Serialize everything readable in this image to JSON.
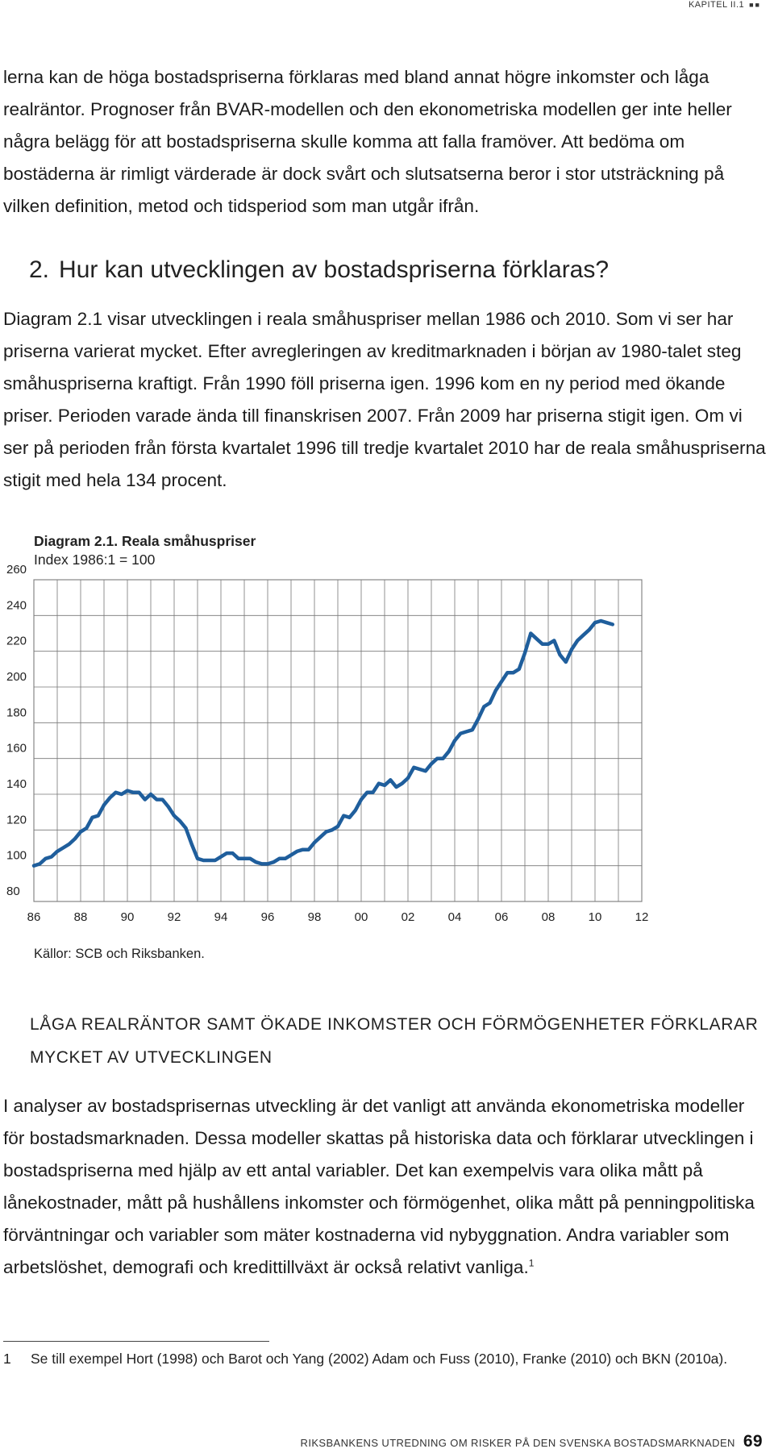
{
  "header": {
    "running_head": "KAPITEL II.1",
    "marker": "■■"
  },
  "paragraphs": {
    "top": "lerna kan de höga bostadspriserna förklaras med bland annat högre inkomster och låga realräntor. Prognoser från BVAR-modellen och den ekonometriska modellen ger inte heller några belägg för att bostadspriserna skulle komma att falla framöver. Att bedöma om bostäderna är rimligt värderade är dock svårt och slutsatserna beror i stor utsträckning på vilken definition, metod och tidsperiod som man utgår ifrån.",
    "p2": "Diagram 2.1 visar utvecklingen i reala småhuspriser mellan 1986 och 2010. Som vi ser har priserna varierat mycket. Efter avregleringen av kreditmarknaden i början av 1980-talet steg småhuspriserna kraftigt. Från 1990 föll priserna igen. 1996 kom en ny period med ökande priser. Perioden varade ända till finanskrisen 2007. Från 2009 har priserna stigit igen. Om vi ser på perioden från första kvartalet 1996 till tredje kvartalet 2010 har de reala småhuspriserna stigit med hela 134 procent.",
    "p3": "I analyser av bostadsprisernas utveckling är det vanligt att använda ekonometriska modeller för bostadsmarknaden. Dessa modeller skattas på historiska data och förklarar utvecklingen i bostadspriserna med hjälp av ett antal variabler. Det kan exempelvis vara olika mått på lånekostnader, mått på hushållens inkomster och förmögenhet, olika mått på penningpolitiska förväntningar och variabler som mäter kostnaderna vid nybyggnation. Andra variabler som arbetslöshet, demografi och kredittillväxt är också relativt vanliga.",
    "p3_sup": "1"
  },
  "section": {
    "number": "2.",
    "title": "Hur kan utvecklingen av bostadspriserna förklaras?"
  },
  "subheading": "LÅGA REALRÄNTOR SAMT ÖKADE INKOMSTER OCH FÖRMÖGENHETER FÖRKLARAR MYCKET AV UTVECKLINGEN",
  "chart_data": {
    "type": "line",
    "title": "Diagram 2.1. Reala småhuspriser",
    "subtitle": "Index 1986:1 = 100",
    "source": "Källor: SCB och Riksbanken.",
    "xlim": [
      1986,
      2012
    ],
    "ylim": [
      80,
      260
    ],
    "xticks": [
      "86",
      "88",
      "90",
      "92",
      "94",
      "96",
      "98",
      "00",
      "02",
      "04",
      "06",
      "08",
      "10",
      "12"
    ],
    "yticks": [
      80,
      100,
      120,
      140,
      160,
      180,
      200,
      220,
      240,
      260
    ],
    "grid": true,
    "line_color": "#1f5e9c",
    "series": [
      {
        "x": [
          1986.0,
          1986.25,
          1986.5,
          1986.75,
          1987.0,
          1987.25,
          1987.5,
          1987.75,
          1988.0,
          1988.25,
          1988.5,
          1988.75,
          1989.0,
          1989.25,
          1989.5,
          1989.75,
          1990.0,
          1990.25,
          1990.5,
          1990.75,
          1991.0,
          1991.25,
          1991.5,
          1991.75,
          1992.0,
          1992.25,
          1992.5,
          1992.75,
          1993.0,
          1993.25,
          1993.5,
          1993.75,
          1994.0,
          1994.25,
          1994.5,
          1994.75,
          1995.0,
          1995.25,
          1995.5,
          1995.75,
          1996.0,
          1996.25,
          1996.5,
          1996.75,
          1997.0,
          1997.25,
          1997.5,
          1997.75,
          1998.0,
          1998.25,
          1998.5,
          1998.75,
          1999.0,
          1999.25,
          1999.5,
          1999.75,
          2000.0,
          2000.25,
          2000.5,
          2000.75,
          2001.0,
          2001.25,
          2001.5,
          2001.75,
          2002.0,
          2002.25,
          2002.5,
          2002.75,
          2003.0,
          2003.25,
          2003.5,
          2003.75,
          2004.0,
          2004.25,
          2004.5,
          2004.75,
          2005.0,
          2005.25,
          2005.5,
          2005.75,
          2006.0,
          2006.25,
          2006.5,
          2006.75,
          2007.0,
          2007.25,
          2007.5,
          2007.75,
          2008.0,
          2008.25,
          2008.5,
          2008.75,
          2009.0,
          2009.25,
          2009.5,
          2009.75,
          2010.0,
          2010.25,
          2010.5,
          2010.75
        ],
        "values": [
          100,
          101,
          104,
          105,
          108,
          110,
          112,
          115,
          119,
          121,
          127,
          128,
          134,
          138,
          141,
          140,
          142,
          141,
          141,
          137,
          140,
          137,
          137,
          133,
          128,
          125,
          121,
          112,
          104,
          103,
          103,
          103,
          105,
          107,
          107,
          104,
          104,
          104,
          102,
          101,
          101,
          102,
          104,
          104,
          106,
          108,
          109,
          109,
          113,
          116,
          119,
          120,
          122,
          128,
          127,
          131,
          137,
          141,
          141,
          146,
          145,
          148,
          144,
          146,
          149,
          155,
          154,
          153,
          157,
          160,
          160,
          164,
          170,
          174,
          175,
          176,
          182,
          189,
          191,
          198,
          203,
          208,
          208,
          210,
          219,
          230,
          227,
          224,
          224,
          226,
          218,
          214,
          221,
          226,
          229,
          232,
          236,
          237,
          236,
          235
        ]
      }
    ]
  },
  "footnote": {
    "number": "1",
    "text": "Se till exempel Hort (1998) och Barot och Yang (2002) Adam och Fuss (2010), Franke (2010) och BKN (2010a)."
  },
  "footer": {
    "text": "RIKSBANKENS UTREDNING OM RISKER PÅ DEN SVENSKA BOSTADSMARKNADEN",
    "page": "69"
  }
}
